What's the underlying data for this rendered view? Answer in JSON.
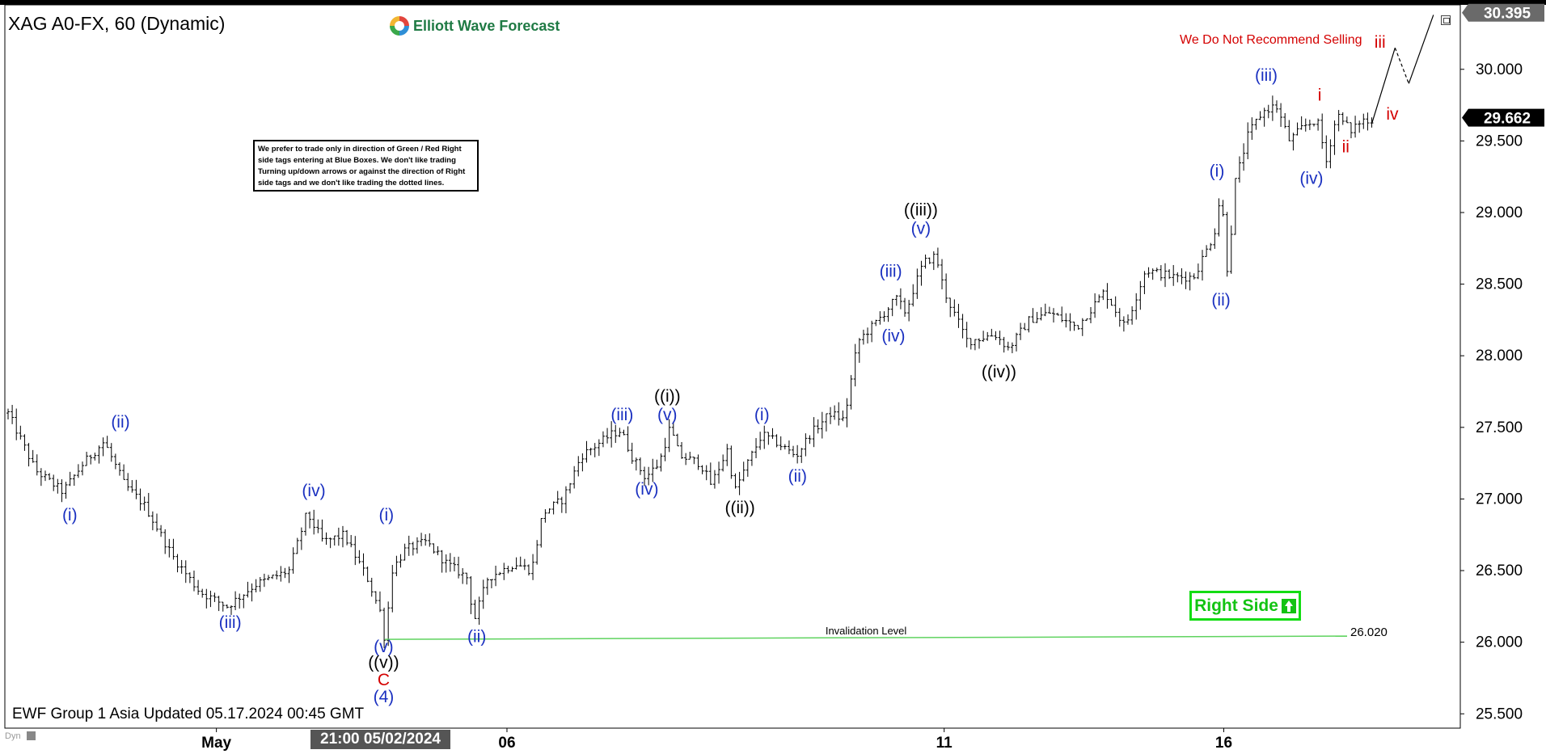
{
  "header": {
    "symbol": "XAG A0-FX, 60 (Dynamic)",
    "brand": "Elliott Wave Forecast",
    "notice": "We prefer to trade only in direction of Green / Red Right side tags entering at Blue Boxes. We don't like trading Turning up/down arrows or against the direction of Right side tags and we don't like trading the dotted lines.",
    "warning": "We Do Not Recommend Selling",
    "right_side_label": "Right Side"
  },
  "footer": {
    "updated": "EWF Group 1 Asia Updated 05.17.2024 00:45 GMT",
    "crosshair_time": "21:00 05/02/2024",
    "dyn_label": "Dyn"
  },
  "colors": {
    "wave_blue": "#1a30c0",
    "wave_black": "#000000",
    "wave_red": "#d40000",
    "invalidation_green": "#5fd35f",
    "right_side_green": "#13dd13",
    "price_tag_bg": "#000000"
  },
  "icons": {
    "logo": "elliott-wave-forecast-logo-icon",
    "right_side_arrow": "up-arrow-icon",
    "maximize": "maximize-window-icon"
  },
  "chart_data": {
    "type": "bar",
    "chart_style": "ohlc-hourly",
    "instrument": "XAG A0-FX",
    "timeframe": "60",
    "ylim": [
      25.4,
      30.45
    ],
    "y_ticks": [
      "25.500",
      "26.000",
      "26.500",
      "27.000",
      "27.500",
      "28.000",
      "28.500",
      "29.000",
      "29.500",
      "30.000"
    ],
    "x_ticks": [
      {
        "label": "May",
        "x": 0.152
      },
      {
        "label": "06",
        "x": 0.364
      },
      {
        "label": "11",
        "x": 0.683
      },
      {
        "label": "16",
        "x": 0.887
      }
    ],
    "price_labels": [
      {
        "value": 30.395,
        "text": "30.395",
        "style": "grey"
      },
      {
        "value": 29.662,
        "text": "29.662",
        "style": "black"
      }
    ],
    "invalidation": {
      "label": "Invalidation Level",
      "value": 26.02,
      "value_text": "26.020",
      "x0": 0.275,
      "x1": 0.977
    },
    "price_path": [
      [
        0.0,
        27.6
      ],
      [
        0.02,
        27.2
      ],
      [
        0.04,
        27.05
      ],
      [
        0.055,
        27.25
      ],
      [
        0.07,
        27.4
      ],
      [
        0.085,
        27.1
      ],
      [
        0.1,
        26.95
      ],
      [
        0.12,
        26.6
      ],
      [
        0.14,
        26.35
      ],
      [
        0.16,
        26.25
      ],
      [
        0.18,
        26.4
      ],
      [
        0.205,
        26.5
      ],
      [
        0.218,
        26.9
      ],
      [
        0.23,
        26.7
      ],
      [
        0.245,
        26.75
      ],
      [
        0.262,
        26.45
      ],
      [
        0.272,
        26.2
      ],
      [
        0.275,
        26.0
      ],
      [
        0.28,
        26.5
      ],
      [
        0.29,
        26.65
      ],
      [
        0.305,
        26.7
      ],
      [
        0.32,
        26.55
      ],
      [
        0.335,
        26.45
      ],
      [
        0.34,
        26.15
      ],
      [
        0.35,
        26.45
      ],
      [
        0.37,
        26.55
      ],
      [
        0.382,
        26.5
      ],
      [
        0.39,
        26.9
      ],
      [
        0.405,
        27.0
      ],
      [
        0.418,
        27.3
      ],
      [
        0.44,
        27.45
      ],
      [
        0.447,
        27.48
      ],
      [
        0.455,
        27.3
      ],
      [
        0.465,
        27.15
      ],
      [
        0.475,
        27.25
      ],
      [
        0.483,
        27.5
      ],
      [
        0.49,
        27.3
      ],
      [
        0.505,
        27.25
      ],
      [
        0.513,
        27.1
      ],
      [
        0.525,
        27.35
      ],
      [
        0.53,
        27.05
      ],
      [
        0.537,
        27.2
      ],
      [
        0.55,
        27.45
      ],
      [
        0.56,
        27.4
      ],
      [
        0.575,
        27.3
      ],
      [
        0.585,
        27.45
      ],
      [
        0.6,
        27.6
      ],
      [
        0.61,
        27.55
      ],
      [
        0.62,
        28.1
      ],
      [
        0.635,
        28.25
      ],
      [
        0.648,
        28.4
      ],
      [
        0.655,
        28.3
      ],
      [
        0.66,
        28.45
      ],
      [
        0.668,
        28.65
      ],
      [
        0.677,
        28.7
      ],
      [
        0.683,
        28.45
      ],
      [
        0.69,
        28.3
      ],
      [
        0.7,
        28.1
      ],
      [
        0.72,
        28.15
      ],
      [
        0.73,
        28.05
      ],
      [
        0.745,
        28.25
      ],
      [
        0.76,
        28.3
      ],
      [
        0.78,
        28.2
      ],
      [
        0.8,
        28.45
      ],
      [
        0.815,
        28.2
      ],
      [
        0.83,
        28.6
      ],
      [
        0.85,
        28.55
      ],
      [
        0.865,
        28.55
      ],
      [
        0.88,
        28.85
      ],
      [
        0.885,
        29.15
      ],
      [
        0.89,
        28.55
      ],
      [
        0.895,
        29.2
      ],
      [
        0.905,
        29.55
      ],
      [
        0.915,
        29.7
      ],
      [
        0.925,
        29.75
      ],
      [
        0.935,
        29.5
      ],
      [
        0.945,
        29.6
      ],
      [
        0.955,
        29.65
      ],
      [
        0.962,
        29.35
      ],
      [
        0.967,
        29.6
      ],
      [
        0.972,
        29.7
      ],
      [
        0.98,
        29.55
      ],
      [
        0.987,
        29.65
      ],
      [
        0.995,
        29.62
      ]
    ],
    "projection": [
      [
        0.995,
        29.62
      ],
      [
        1.012,
        30.15
      ],
      [
        1.022,
        29.9
      ],
      [
        1.04,
        30.38
      ]
    ],
    "labels": [
      {
        "text": "(i)",
        "t": 0.045,
        "v": 26.85,
        "color": "blue"
      },
      {
        "text": "(ii)",
        "t": 0.082,
        "v": 27.5,
        "color": "blue"
      },
      {
        "text": "(iii)",
        "t": 0.162,
        "v": 26.1,
        "color": "blue"
      },
      {
        "text": "(iv)",
        "t": 0.223,
        "v": 27.02,
        "color": "blue"
      },
      {
        "text": "(v)",
        "t": 0.274,
        "v": 25.93,
        "color": "blue"
      },
      {
        "text": "((v))",
        "t": 0.274,
        "v": 25.82,
        "color": "black"
      },
      {
        "text": "C",
        "t": 0.274,
        "v": 25.7,
        "color": "red"
      },
      {
        "text": "(4)",
        "t": 0.274,
        "v": 25.58,
        "color": "blue"
      },
      {
        "text": "(i)",
        "t": 0.276,
        "v": 26.85,
        "color": "blue"
      },
      {
        "text": "(ii)",
        "t": 0.342,
        "v": 26.0,
        "color": "blue"
      },
      {
        "text": "(iii)",
        "t": 0.448,
        "v": 27.55,
        "color": "blue"
      },
      {
        "text": "(iv)",
        "t": 0.466,
        "v": 27.03,
        "color": "blue"
      },
      {
        "text": "((i))",
        "t": 0.481,
        "v": 27.68,
        "color": "black"
      },
      {
        "text": "(v)",
        "t": 0.481,
        "v": 27.55,
        "color": "blue"
      },
      {
        "text": "((ii))",
        "t": 0.534,
        "v": 26.9,
        "color": "black"
      },
      {
        "text": "(i)",
        "t": 0.55,
        "v": 27.55,
        "color": "blue"
      },
      {
        "text": "(ii)",
        "t": 0.576,
        "v": 27.12,
        "color": "blue"
      },
      {
        "text": "(iii)",
        "t": 0.644,
        "v": 28.55,
        "color": "blue"
      },
      {
        "text": "(iv)",
        "t": 0.646,
        "v": 28.1,
        "color": "blue"
      },
      {
        "text": "((iii))",
        "t": 0.666,
        "v": 28.98,
        "color": "black"
      },
      {
        "text": "(v)",
        "t": 0.666,
        "v": 28.85,
        "color": "blue"
      },
      {
        "text": "((iv))",
        "t": 0.723,
        "v": 27.85,
        "color": "black"
      },
      {
        "text": "(i)",
        "t": 0.882,
        "v": 29.25,
        "color": "blue"
      },
      {
        "text": "(ii)",
        "t": 0.885,
        "v": 28.35,
        "color": "blue"
      },
      {
        "text": "(iii)",
        "t": 0.918,
        "v": 29.92,
        "color": "blue"
      },
      {
        "text": "(iv)",
        "t": 0.951,
        "v": 29.2,
        "color": "blue"
      },
      {
        "text": "i",
        "t": 0.957,
        "v": 29.78,
        "color": "red"
      },
      {
        "text": "ii",
        "t": 0.976,
        "v": 29.42,
        "color": "red"
      },
      {
        "text": "iii",
        "t": 1.001,
        "v": 30.15,
        "color": "red"
      },
      {
        "text": "iv",
        "t": 1.01,
        "v": 29.65,
        "color": "red"
      }
    ]
  }
}
